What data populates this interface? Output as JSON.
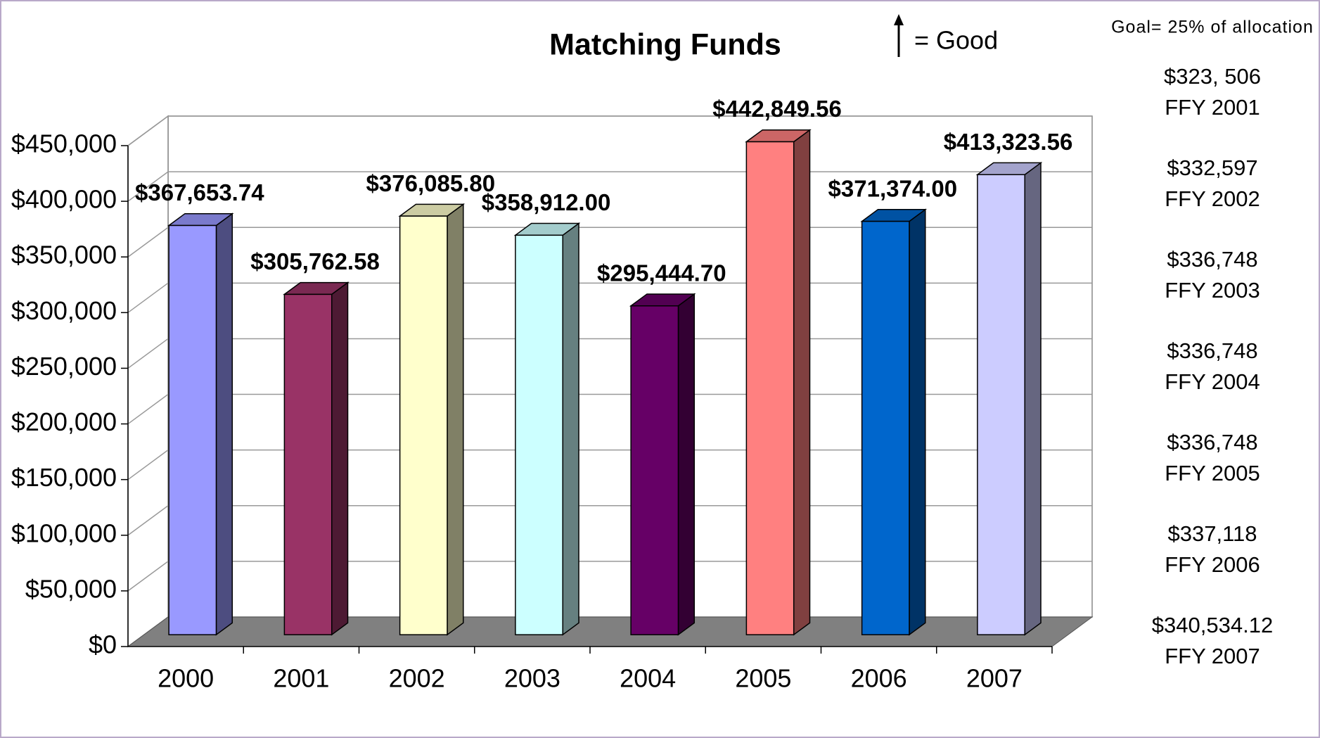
{
  "chart_data": {
    "type": "bar3d",
    "title": "Matching Funds",
    "annotation": "= Good",
    "goal_note": "Goal= 25% of allocation",
    "categories": [
      "2000",
      "2001",
      "2002",
      "2003",
      "2004",
      "2005",
      "2006",
      "2007"
    ],
    "values": [
      367653.74,
      305762.58,
      376085.8,
      358912.0,
      295444.7,
      442849.56,
      371374.0,
      413323.56
    ],
    "value_labels": [
      "$367,653.74",
      "$305,762.58",
      "$376,085.80",
      "$358,912.00",
      "$295,444.70",
      "$442,849.56",
      "$371,374.00",
      "$413,323.56"
    ],
    "colors": [
      "#9999ff",
      "#993366",
      "#ffffcc",
      "#ccffff",
      "#660066",
      "#ff8080",
      "#0066cc",
      "#ccccff"
    ],
    "ylim": [
      0,
      450000
    ],
    "yticks": [
      {
        "value": 0,
        "label": "$0"
      },
      {
        "value": 50000,
        "label": "$50,000"
      },
      {
        "value": 100000,
        "label": "$100,000"
      },
      {
        "value": 150000,
        "label": "$150,000"
      },
      {
        "value": 200000,
        "label": "$200,000"
      },
      {
        "value": 250000,
        "label": "$250,000"
      },
      {
        "value": 300000,
        "label": "$300,000"
      },
      {
        "value": 350000,
        "label": "$350,000"
      },
      {
        "value": 400000,
        "label": "$400,000"
      },
      {
        "value": 450000,
        "label": "$450,000"
      }
    ],
    "grid": true,
    "side_notes": [
      {
        "amount": "$323, 506",
        "label": "FFY 2001"
      },
      {
        "amount": "$332,597",
        "label": "FFY 2002"
      },
      {
        "amount": "$336,748",
        "label": "FFY 2003"
      },
      {
        "amount": "$336,748",
        "label": "FFY 2004"
      },
      {
        "amount": "$336,748",
        "label": "FFY 2005"
      },
      {
        "amount": "$337,118",
        "label": "FFY 2006"
      },
      {
        "amount": "$340,534.12",
        "label": "FFY 2007"
      }
    ]
  }
}
